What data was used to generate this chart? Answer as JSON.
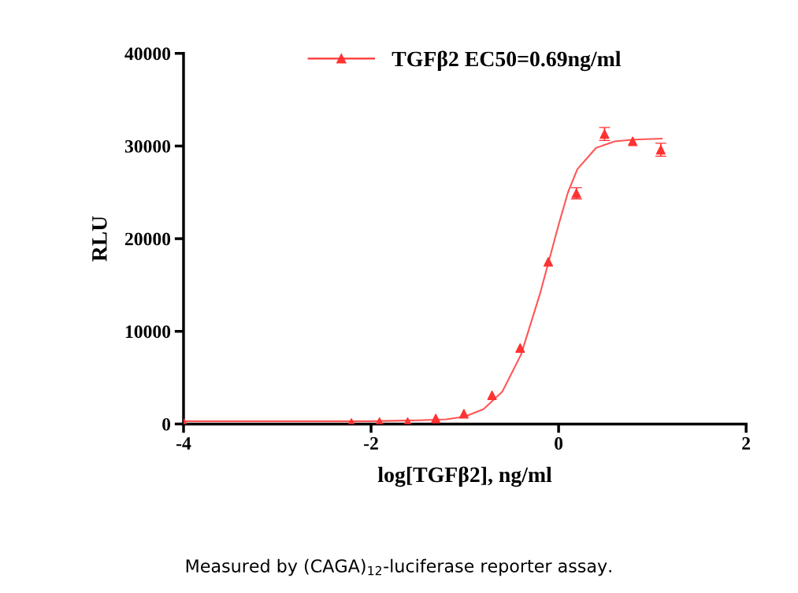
{
  "chart_data": {
    "type": "line",
    "xlabel": "log[TGFβ2], ng/ml",
    "ylabel": "RLU",
    "xlim": [
      -4,
      2
    ],
    "xticks": [
      {
        "value": -4,
        "label": "-4"
      },
      {
        "value": -2,
        "label": "-2"
      },
      0,
      2
    ],
    "ylim": [
      0,
      40000
    ],
    "yticks": [
      0,
      10000,
      20000,
      30000,
      40000
    ],
    "grid": false,
    "legend": "top",
    "series": [
      {
        "name": "TGFβ2 EC50=0.69ng/ml",
        "type": "scatter",
        "marker": "triangle",
        "color": "#ff3333",
        "x": [
          -4,
          -2.21,
          -1.91,
          -1.61,
          -1.31,
          -1.01,
          -0.71,
          -0.41,
          -0.11,
          0.19,
          0.49,
          0.79,
          1.09
        ],
        "values": [
          100,
          100,
          200,
          200,
          600,
          1100,
          3100,
          8200,
          17500,
          24900,
          31300,
          30500,
          29600
        ],
        "errors": [
          null,
          null,
          null,
          null,
          null,
          null,
          null,
          null,
          null,
          600,
          700,
          null,
          700
        ]
      },
      {
        "color": "#ff5555",
        "marker": "none",
        "x": [
          -4,
          -2,
          -1.5,
          -1.2,
          -1,
          -0.8,
          -0.6,
          -0.4,
          -0.2,
          0,
          0.1,
          0.2,
          0.4,
          0.6,
          0.8,
          1.1
        ],
        "values": [
          300,
          300,
          400,
          500,
          800,
          1600,
          3500,
          7500,
          14000,
          21500,
          25000,
          27500,
          29800,
          30500,
          30700,
          30800
        ]
      }
    ],
    "annotations": [
      "Measured by (CAGA)$_{12}$-luciferase reporter assay."
    ]
  }
}
